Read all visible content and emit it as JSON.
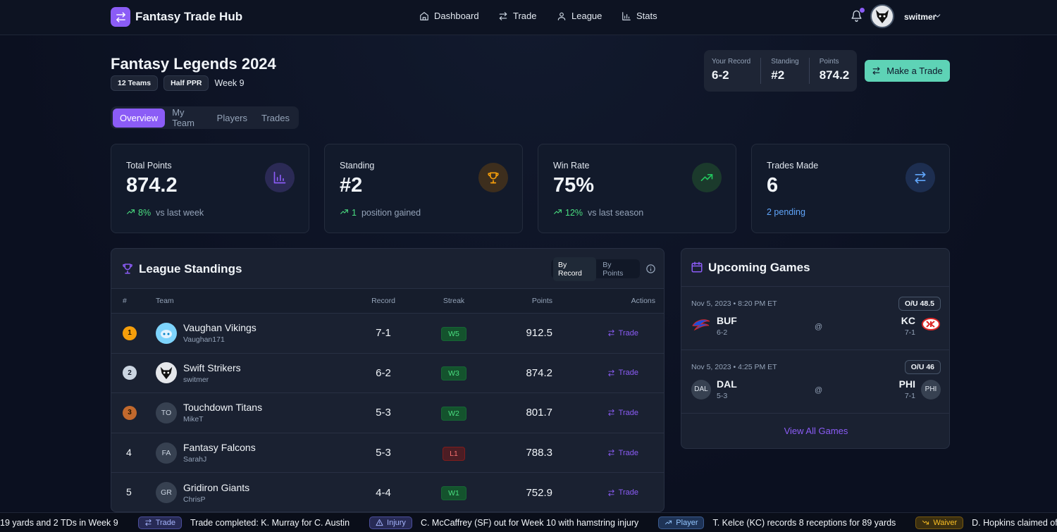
{
  "nav": {
    "brand": "Fantasy Trade Hub",
    "links": [
      "Dashboard",
      "Trade",
      "League",
      "Stats"
    ],
    "user": "switmer"
  },
  "league": {
    "title": "Fantasy Legends 2024",
    "badges": [
      "12 Teams",
      "Half PPR"
    ],
    "week": "Week 9"
  },
  "summary": {
    "items": [
      {
        "label": "Your Record",
        "value": "6-2"
      },
      {
        "label": "Standing",
        "value": "#2"
      },
      {
        "label": "Points",
        "value": "874.2"
      }
    ],
    "button": "Make a Trade"
  },
  "tabs": [
    "Overview",
    "My Team",
    "Players",
    "Trades"
  ],
  "cards": [
    {
      "label": "Total Points",
      "value": "874.2",
      "change": "8%",
      "note": "vs last week"
    },
    {
      "label": "Standing",
      "value": "#2",
      "change": "1",
      "note": "position gained"
    },
    {
      "label": "Win Rate",
      "value": "75%",
      "change": "12%",
      "note": "vs last season"
    },
    {
      "label": "Trades Made",
      "value": "6",
      "note": "2 pending"
    }
  ],
  "standings": {
    "title": "League Standings",
    "toggles": [
      "By Record",
      "By Points"
    ],
    "columns": [
      "#",
      "Team",
      "Record",
      "Streak",
      "Points",
      "Actions"
    ],
    "rows": [
      {
        "rank": "1",
        "team": "Vaughan Vikings",
        "owner": "Vaughan171",
        "record": "7-1",
        "streak": "W5",
        "points": "912.5",
        "action": "Trade"
      },
      {
        "rank": "2",
        "team": "Swift Strikers",
        "owner": "switmer",
        "record": "6-2",
        "streak": "W3",
        "points": "874.2",
        "action": "Trade"
      },
      {
        "rank": "3",
        "initials": "TO",
        "team": "Touchdown Titans",
        "owner": "MikeT",
        "record": "5-3",
        "streak": "W2",
        "points": "801.7",
        "action": "Trade"
      },
      {
        "rank": "4",
        "initials": "FA",
        "team": "Fantasy Falcons",
        "owner": "SarahJ",
        "record": "5-3",
        "streak": "L1",
        "points": "788.3",
        "action": "Trade"
      },
      {
        "rank": "5",
        "initials": "GR",
        "team": "Gridiron Giants",
        "owner": "ChrisP",
        "record": "4-4",
        "streak": "W1",
        "points": "752.9",
        "action": "Trade"
      }
    ]
  },
  "games": {
    "title": "Upcoming Games",
    "items": [
      {
        "time": "Nov 5, 2023 • 8:20 PM ET",
        "ou": "O/U 48.5",
        "at": "@",
        "away": {
          "abbr": "BUF",
          "record": "6-2"
        },
        "home": {
          "abbr": "KC",
          "record": "7-1"
        }
      },
      {
        "time": "Nov 5, 2023 • 4:25 PM ET",
        "ou": "O/U 46",
        "at": "@",
        "away": {
          "abbr": "DAL",
          "record": "5-3",
          "badge": "DAL"
        },
        "home": {
          "abbr": "PHI",
          "record": "7-1",
          "badge": "PHI"
        }
      }
    ],
    "link": "View All Games"
  },
  "ticker": [
    {
      "text": "19 yards and 2 TDs in Week 9"
    },
    {
      "tag": "Trade",
      "text": "Trade completed: K. Murray for C. Austin"
    },
    {
      "tag": "Injury",
      "text": "C. McCaffrey (SF) out for Week 10 with hamstring injury"
    },
    {
      "tag": "Player",
      "text": "T. Kelce (KC) records 8 receptions for 89 yards"
    },
    {
      "tag": "Waiver",
      "text": "D. Hopkins claimed off waivers"
    }
  ]
}
